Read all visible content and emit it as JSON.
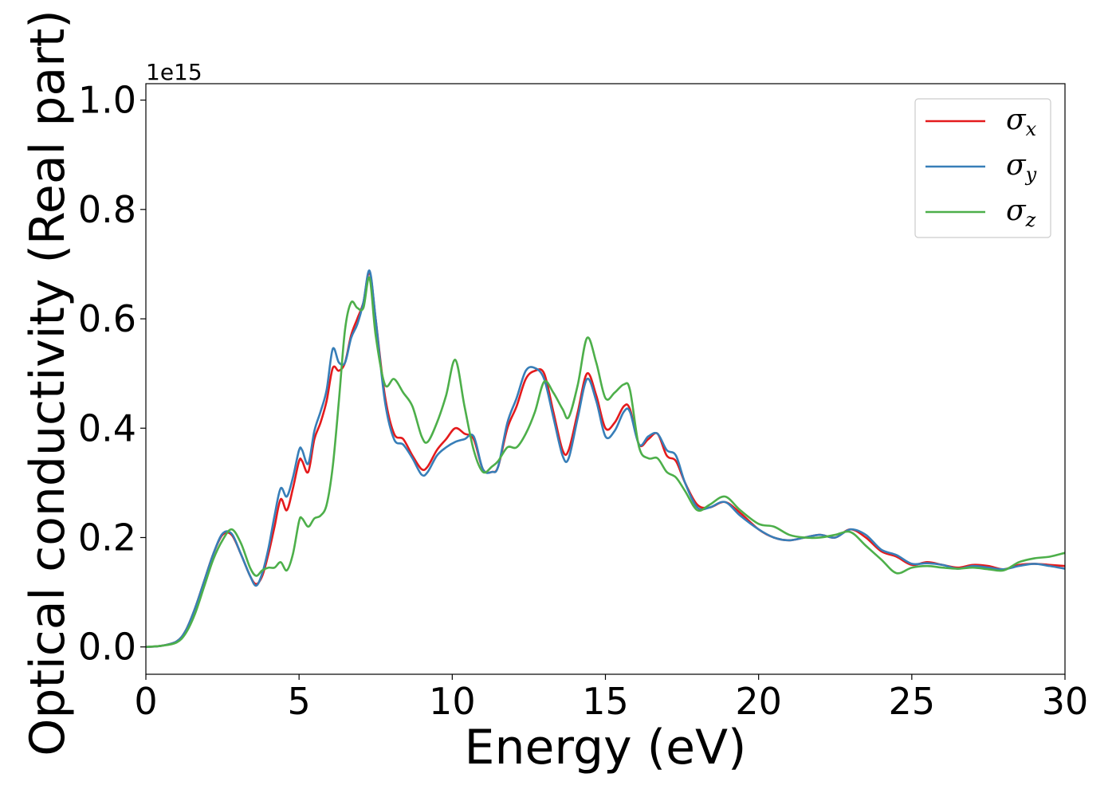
{
  "chart_data": {
    "type": "line",
    "title": "",
    "xlabel": "Energy (eV)",
    "ylabel": "Optical conductivity (Real part)",
    "y_offset_label": "1e15",
    "xlim": [
      0,
      30
    ],
    "ylim": [
      -0.05,
      1.03
    ],
    "y_scale_note": "values in units of 1e15",
    "xticks": [
      0,
      5,
      10,
      15,
      20,
      25,
      30
    ],
    "xtick_labels": [
      "0",
      "5",
      "10",
      "15",
      "20",
      "25",
      "30"
    ],
    "yticks": [
      0.0,
      0.2,
      0.4,
      0.6,
      0.8,
      1.0
    ],
    "ytick_labels": [
      "0.0",
      "0.2",
      "0.4",
      "0.6",
      "0.8",
      "1.0"
    ],
    "grid": false,
    "legend_position": "top-right",
    "series": [
      {
        "name": "σx",
        "symbol": "σ",
        "subscript": "x",
        "color": "#e41a1c",
        "x": [
          0,
          0.5,
          1.0,
          1.3,
          1.6,
          1.9,
          2.2,
          2.5,
          2.8,
          3.1,
          3.4,
          3.6,
          3.8,
          4.0,
          4.2,
          4.4,
          4.6,
          4.8,
          5.0,
          5.1,
          5.3,
          5.5,
          5.7,
          5.9,
          6.1,
          6.3,
          6.5,
          6.7,
          6.9,
          7.1,
          7.3,
          7.5,
          7.8,
          8.1,
          8.4,
          8.7,
          9.0,
          9.2,
          9.5,
          9.8,
          10.1,
          10.4,
          10.7,
          11.0,
          11.3,
          11.5,
          11.8,
          12.1,
          12.4,
          12.7,
          13.0,
          13.3,
          13.6,
          13.8,
          14.1,
          14.4,
          14.7,
          15.0,
          15.3,
          15.6,
          15.8,
          16.1,
          16.4,
          16.7,
          17.0,
          17.3,
          17.6,
          18.0,
          18.4,
          18.9,
          19.4,
          20.0,
          20.5,
          21.0,
          21.5,
          22.0,
          22.5,
          23.0,
          23.5,
          24.0,
          24.5,
          25.0,
          25.5,
          26.0,
          26.5,
          27.0,
          27.5,
          28.0,
          28.5,
          29.0,
          29.5,
          30.0
        ],
        "values": [
          0.0,
          0.002,
          0.01,
          0.03,
          0.07,
          0.12,
          0.17,
          0.205,
          0.205,
          0.17,
          0.13,
          0.115,
          0.13,
          0.17,
          0.22,
          0.27,
          0.25,
          0.29,
          0.34,
          0.34,
          0.32,
          0.38,
          0.41,
          0.45,
          0.51,
          0.505,
          0.52,
          0.57,
          0.6,
          0.63,
          0.685,
          0.6,
          0.46,
          0.39,
          0.38,
          0.35,
          0.325,
          0.33,
          0.36,
          0.38,
          0.4,
          0.39,
          0.38,
          0.325,
          0.32,
          0.33,
          0.4,
          0.44,
          0.49,
          0.505,
          0.5,
          0.43,
          0.36,
          0.36,
          0.43,
          0.5,
          0.46,
          0.4,
          0.41,
          0.44,
          0.435,
          0.37,
          0.38,
          0.39,
          0.35,
          0.34,
          0.3,
          0.26,
          0.255,
          0.265,
          0.245,
          0.215,
          0.2,
          0.195,
          0.2,
          0.205,
          0.2,
          0.215,
          0.2,
          0.175,
          0.165,
          0.15,
          0.155,
          0.15,
          0.145,
          0.15,
          0.148,
          0.142,
          0.15,
          0.152,
          0.15,
          0.148
        ]
      },
      {
        "name": "σy",
        "symbol": "σ",
        "subscript": "y",
        "color": "#377eb8",
        "x": [
          0,
          0.5,
          1.0,
          1.3,
          1.6,
          1.9,
          2.2,
          2.5,
          2.8,
          3.1,
          3.4,
          3.6,
          3.8,
          4.0,
          4.2,
          4.4,
          4.6,
          4.8,
          5.0,
          5.1,
          5.3,
          5.5,
          5.7,
          5.9,
          6.1,
          6.3,
          6.5,
          6.7,
          6.9,
          7.1,
          7.3,
          7.5,
          7.8,
          8.1,
          8.4,
          8.7,
          9.0,
          9.2,
          9.5,
          9.8,
          10.1,
          10.4,
          10.7,
          11.0,
          11.3,
          11.5,
          11.8,
          12.1,
          12.4,
          12.7,
          13.0,
          13.3,
          13.6,
          13.8,
          14.1,
          14.4,
          14.7,
          15.0,
          15.3,
          15.6,
          15.8,
          16.1,
          16.4,
          16.7,
          17.0,
          17.3,
          17.6,
          18.0,
          18.4,
          18.9,
          19.4,
          20.0,
          20.5,
          21.0,
          21.5,
          22.0,
          22.5,
          23.0,
          23.5,
          24.0,
          24.5,
          25.0,
          25.5,
          26.0,
          26.5,
          27.0,
          27.5,
          28.0,
          28.5,
          29.0,
          29.5,
          30.0
        ],
        "values": [
          0.0,
          0.002,
          0.01,
          0.03,
          0.07,
          0.12,
          0.17,
          0.207,
          0.207,
          0.17,
          0.13,
          0.112,
          0.135,
          0.18,
          0.24,
          0.29,
          0.275,
          0.31,
          0.36,
          0.36,
          0.335,
          0.395,
          0.43,
          0.47,
          0.545,
          0.52,
          0.52,
          0.565,
          0.59,
          0.63,
          0.688,
          0.6,
          0.45,
          0.38,
          0.37,
          0.345,
          0.315,
          0.32,
          0.35,
          0.365,
          0.375,
          0.38,
          0.385,
          0.325,
          0.32,
          0.33,
          0.41,
          0.455,
          0.505,
          0.51,
          0.49,
          0.42,
          0.35,
          0.345,
          0.42,
          0.49,
          0.45,
          0.385,
          0.395,
          0.43,
          0.43,
          0.37,
          0.385,
          0.39,
          0.36,
          0.35,
          0.3,
          0.255,
          0.255,
          0.265,
          0.24,
          0.215,
          0.2,
          0.195,
          0.2,
          0.205,
          0.2,
          0.215,
          0.205,
          0.178,
          0.168,
          0.152,
          0.153,
          0.15,
          0.143,
          0.148,
          0.145,
          0.142,
          0.148,
          0.152,
          0.148,
          0.143
        ]
      },
      {
        "name": "σz",
        "symbol": "σ",
        "subscript": "z",
        "color": "#4daf4a",
        "x": [
          0,
          0.5,
          1.0,
          1.3,
          1.6,
          1.9,
          2.2,
          2.5,
          2.8,
          3.1,
          3.4,
          3.6,
          3.8,
          4.0,
          4.2,
          4.4,
          4.6,
          4.8,
          5.0,
          5.1,
          5.3,
          5.5,
          5.7,
          5.9,
          6.1,
          6.3,
          6.5,
          6.7,
          6.9,
          7.1,
          7.3,
          7.5,
          7.8,
          8.1,
          8.4,
          8.7,
          9.0,
          9.2,
          9.5,
          9.8,
          10.1,
          10.4,
          10.7,
          11.0,
          11.3,
          11.5,
          11.8,
          12.1,
          12.4,
          12.7,
          13.0,
          13.3,
          13.6,
          13.8,
          14.1,
          14.4,
          14.7,
          15.0,
          15.3,
          15.6,
          15.8,
          16.1,
          16.4,
          16.7,
          17.0,
          17.3,
          17.6,
          18.0,
          18.4,
          18.9,
          19.4,
          20.0,
          20.5,
          21.0,
          21.5,
          22.0,
          22.5,
          23.0,
          23.5,
          24.0,
          24.5,
          25.0,
          25.5,
          26.0,
          26.5,
          27.0,
          27.5,
          28.0,
          28.5,
          29.0,
          29.5,
          30.0
        ],
        "values": [
          0.0,
          0.002,
          0.008,
          0.025,
          0.06,
          0.11,
          0.16,
          0.195,
          0.215,
          0.19,
          0.145,
          0.13,
          0.14,
          0.145,
          0.145,
          0.155,
          0.14,
          0.17,
          0.23,
          0.235,
          0.22,
          0.235,
          0.24,
          0.26,
          0.33,
          0.45,
          0.58,
          0.63,
          0.62,
          0.62,
          0.675,
          0.57,
          0.48,
          0.49,
          0.465,
          0.44,
          0.385,
          0.375,
          0.41,
          0.46,
          0.525,
          0.44,
          0.36,
          0.32,
          0.33,
          0.34,
          0.365,
          0.365,
          0.39,
          0.43,
          0.485,
          0.465,
          0.435,
          0.42,
          0.48,
          0.565,
          0.52,
          0.455,
          0.465,
          0.48,
          0.47,
          0.365,
          0.345,
          0.345,
          0.32,
          0.31,
          0.285,
          0.25,
          0.26,
          0.275,
          0.25,
          0.225,
          0.22,
          0.205,
          0.2,
          0.2,
          0.205,
          0.21,
          0.185,
          0.16,
          0.135,
          0.145,
          0.148,
          0.145,
          0.143,
          0.145,
          0.142,
          0.14,
          0.155,
          0.162,
          0.165,
          0.172
        ]
      }
    ]
  }
}
